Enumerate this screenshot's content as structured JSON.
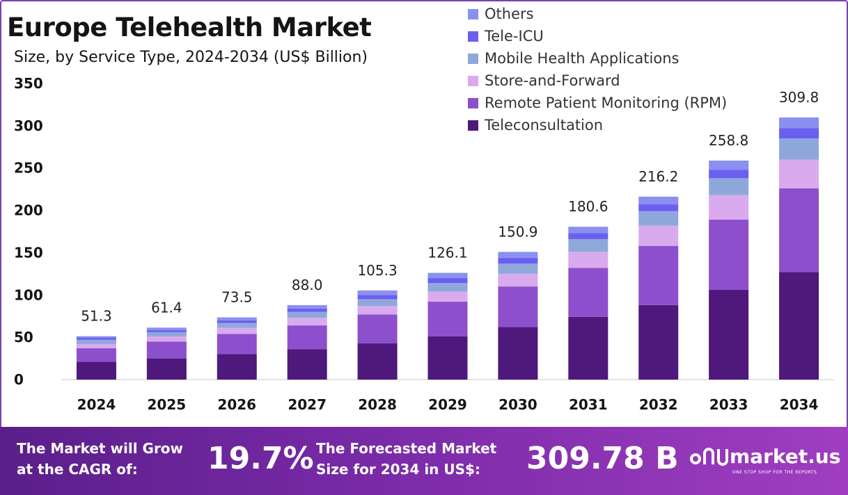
{
  "title": "Europe Telehealth Market",
  "subtitle": "Size, by Service Type, 2024-2034 (US$ Billion)",
  "legend": [
    {
      "label": "Others",
      "color": "#8a8ff0"
    },
    {
      "label": "Tele-ICU",
      "color": "#6b5ff0"
    },
    {
      "label": "Mobile Health Applications",
      "color": "#8fa8dc"
    },
    {
      "label": "Store-and-Forward",
      "color": "#d9aaee"
    },
    {
      "label": "Remote Patient Monitoring (RPM)",
      "color": "#8e4fcc"
    },
    {
      "label": "Teleconsultation",
      "color": "#4e187c"
    }
  ],
  "chart_data": {
    "type": "bar",
    "stacked": true,
    "categories": [
      "2024",
      "2025",
      "2026",
      "2027",
      "2028",
      "2029",
      "2030",
      "2031",
      "2032",
      "2033",
      "2034"
    ],
    "series": [
      {
        "name": "Teleconsultation",
        "color": "#4e187c",
        "values": [
          21,
          25,
          30,
          36,
          43,
          51,
          62,
          74,
          88,
          106,
          127
        ]
      },
      {
        "name": "Remote Patient Monitoring (RPM)",
        "color": "#8e4fcc",
        "values": [
          16,
          20,
          24,
          28,
          34,
          41,
          48,
          58,
          70,
          83,
          99
        ]
      },
      {
        "name": "Store-and-Forward",
        "color": "#d9aaee",
        "values": [
          5,
          6,
          7,
          9,
          10,
          12,
          15,
          19,
          24,
          29,
          34
        ]
      },
      {
        "name": "Mobile Health Applications",
        "color": "#8fa8dc",
        "values": [
          5,
          5,
          6,
          7,
          8,
          10,
          12,
          15,
          17,
          20,
          25
        ]
      },
      {
        "name": "Tele-ICU",
        "color": "#6b5ff0",
        "values": [
          2.3,
          2.5,
          3.0,
          4.0,
          5.0,
          6.0,
          7.0,
          7.0,
          8.0,
          10.0,
          12.0
        ]
      },
      {
        "name": "Others",
        "color": "#8a8ff0",
        "values": [
          2.0,
          2.9,
          3.5,
          4.0,
          5.3,
          6.1,
          6.9,
          7.6,
          9.2,
          10.8,
          12.8
        ]
      }
    ],
    "totals": [
      "51.3",
      "61.4",
      "73.5",
      "88.0",
      "105.3",
      "126.1",
      "150.9",
      "180.6",
      "216.2",
      "258.8",
      "309.8"
    ],
    "y_ticks": [
      "0",
      "50",
      "100",
      "150",
      "200",
      "250",
      "300",
      "350"
    ],
    "ylim": [
      0,
      350
    ],
    "xlabel": "",
    "ylabel": "",
    "grid": false,
    "legend_position": "top-right"
  },
  "footer": {
    "cagr_label_line1": "The Market will Grow",
    "cagr_label_line2": "at the CAGR of:",
    "cagr_value": "19.7%",
    "forecast_label_line1": "The Forecasted Market",
    "forecast_label_line2": "Size for 2034 in US$:",
    "forecast_value": "309.78 B",
    "brand_name": "market.us",
    "brand_tagline": "ONE STOP SHOP FOR THE REPORTS"
  }
}
